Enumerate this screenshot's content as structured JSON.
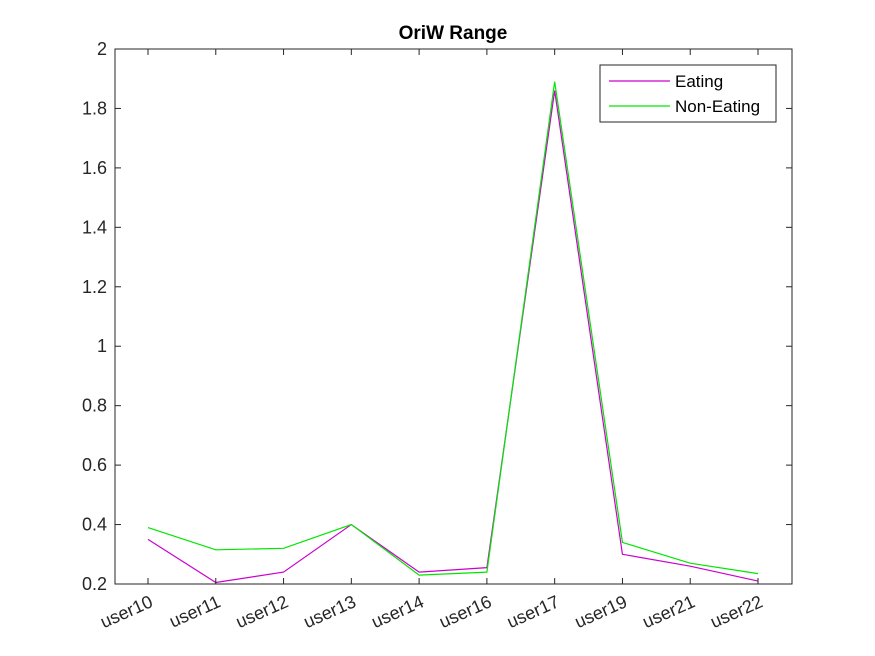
{
  "chart_data": {
    "type": "line",
    "title": "OriW Range",
    "xlabel": "",
    "ylabel": "",
    "categories": [
      "user10",
      "user11",
      "user12",
      "user13",
      "user14",
      "user16",
      "user17",
      "user19",
      "user21",
      "user22"
    ],
    "ylim": [
      0.2,
      2
    ],
    "yticks": [
      0.2,
      0.4,
      0.6,
      0.8,
      1,
      1.2,
      1.4,
      1.6,
      1.8,
      2
    ],
    "ytick_labels": [
      "0.2",
      "0.4",
      "0.6",
      "0.8",
      "1",
      "1.2",
      "1.4",
      "1.6",
      "1.8",
      "2"
    ],
    "grid": false,
    "legend_position": "top-right",
    "series": [
      {
        "name": "Eating",
        "color": "#cc00cc",
        "values": [
          0.35,
          0.205,
          0.24,
          0.4,
          0.24,
          0.255,
          1.86,
          0.3,
          0.26,
          0.21
        ]
      },
      {
        "name": "Non-Eating",
        "color": "#00e600",
        "values": [
          0.39,
          0.315,
          0.32,
          0.4,
          0.23,
          0.24,
          1.89,
          0.34,
          0.27,
          0.235
        ]
      }
    ]
  }
}
